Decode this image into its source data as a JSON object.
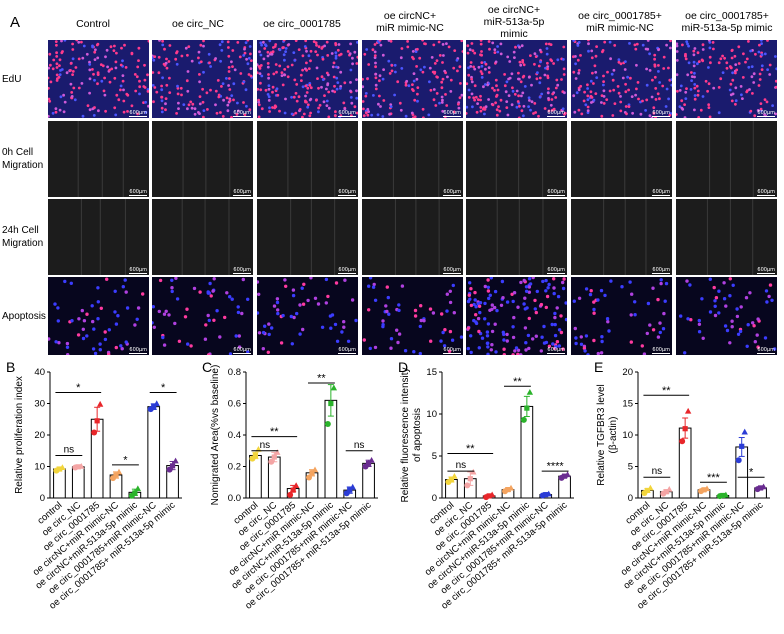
{
  "panel_a": {
    "letter": "A",
    "columns": [
      [
        "Control"
      ],
      [
        "oe circ_NC"
      ],
      [
        "oe circ_0001785"
      ],
      [
        "oe circNC+",
        "miR mimic-NC"
      ],
      [
        "oe circNC+",
        "miR-513a-5p",
        "mimic"
      ],
      [
        "oe circ_0001785+",
        "miR mimic-NC"
      ],
      [
        "oe circ_0001785+",
        "miR-513a-5p mimic"
      ]
    ],
    "rows": [
      {
        "label": [
          "EdU"
        ],
        "kind": "edu"
      },
      {
        "label": [
          "0h Cell",
          "Migration"
        ],
        "kind": "mig0"
      },
      {
        "label": [
          "24h Cell",
          "Migration"
        ],
        "kind": "mig24"
      },
      {
        "label": [
          "Apoptosis"
        ],
        "kind": "apo"
      }
    ],
    "scale_bar": "600μm"
  },
  "chart_data": [
    {
      "type": "bar",
      "letter": "B",
      "ylabel": "Relative proliferation index",
      "ylim": [
        0,
        40
      ],
      "yticks": [
        0,
        10,
        20,
        30,
        40
      ],
      "categories": [
        "control",
        "oe circ_NC",
        "oe circ_0001785",
        "oe circNC+miR mimic-NC",
        "oe circNC+miR-513a-5p mimic",
        "oe circ_0001785+miR mimic-NC",
        "oe circ_0001785+ miR-513a-5p mimic"
      ],
      "values": [
        9.2,
        9.9,
        25.0,
        7.3,
        1.8,
        29.0,
        10.3
      ],
      "errors": [
        0.6,
        0.3,
        3.8,
        1.0,
        1.0,
        0.9,
        1.3
      ],
      "points": [
        [
          8.7,
          9.2,
          9.7
        ],
        [
          9.7,
          9.9,
          10.1
        ],
        [
          20.8,
          24.5,
          29.8
        ],
        [
          6.3,
          7.3,
          8.3
        ],
        [
          0.7,
          1.6,
          3.0
        ],
        [
          28.2,
          29.0,
          30.0
        ],
        [
          9.0,
          10.2,
          11.8
        ]
      ],
      "colors": [
        "#f2d53c",
        "#f4a5a5",
        "#e8262a",
        "#f4a460",
        "#2bb32b",
        "#2b3cd6",
        "#6a2c91"
      ],
      "brackets": [
        {
          "from": 0,
          "to": 2,
          "y": 33.5,
          "label": "*"
        },
        {
          "from": 0,
          "to": 1,
          "y": 13.5,
          "label": "ns"
        },
        {
          "from": 3,
          "to": 4,
          "y": 10.5,
          "label": "*"
        },
        {
          "from": 5,
          "to": 6,
          "y": 33.5,
          "label": "*"
        }
      ]
    },
    {
      "type": "bar",
      "letter": "C",
      "ylabel": "Nomigrated Area(%vs baseline)",
      "ylim": [
        0,
        0.8
      ],
      "yticks": [
        0.0,
        0.2,
        0.4,
        0.6,
        0.8
      ],
      "categories": [
        "control",
        "oe circ_NC",
        "oe circ_0001785",
        "oe circNC+miR mimic-NC",
        "oe circNC+miR-513a-5p mimic",
        "oe circ_0001785+miR mimic-NC",
        "oe circ_0001785+ miR-513a-5p mimic"
      ],
      "values": [
        0.27,
        0.26,
        0.06,
        0.16,
        0.62,
        0.05,
        0.22
      ],
      "errors": [
        0.02,
        0.03,
        0.02,
        0.02,
        0.1,
        0.02,
        0.02
      ],
      "points": [
        [
          0.25,
          0.27,
          0.31
        ],
        [
          0.23,
          0.26,
          0.29
        ],
        [
          0.02,
          0.05,
          0.08
        ],
        [
          0.13,
          0.16,
          0.18
        ],
        [
          0.47,
          0.6,
          0.7
        ],
        [
          0.03,
          0.05,
          0.07
        ],
        [
          0.2,
          0.22,
          0.24
        ]
      ],
      "colors": [
        "#f2d53c",
        "#f4a5a5",
        "#e8262a",
        "#f4a460",
        "#2bb32b",
        "#2b3cd6",
        "#6a2c91"
      ],
      "brackets": [
        {
          "from": 0,
          "to": 2,
          "y": 0.39,
          "label": "**"
        },
        {
          "from": 0,
          "to": 1,
          "y": 0.3,
          "label": "ns"
        },
        {
          "from": 3,
          "to": 4,
          "y": 0.73,
          "label": "**"
        },
        {
          "from": 5,
          "to": 6,
          "y": 0.3,
          "label": "ns"
        }
      ]
    },
    {
      "type": "bar",
      "letter": "D",
      "ylabel": "Relative fluorescence intensity of apoptosis",
      "ylabel_lines": [
        "Relative fluorescence intensity",
        "of apoptosis"
      ],
      "ylim": [
        0,
        15
      ],
      "yticks": [
        0,
        5,
        10,
        15
      ],
      "categories": [
        "control",
        "oe circ_NC",
        "oe circ_0001785",
        "oe circNC+miR mimic-NC",
        "oe circNC+miR-513a-5p mimic",
        "oe circ_0001785+miR mimic-NC",
        "oe circ_0001785+ miR-513a-5p mimic"
      ],
      "values": [
        2.2,
        2.3,
        0.25,
        1.0,
        10.9,
        0.4,
        2.6
      ],
      "errors": [
        0.3,
        0.8,
        0.1,
        0.2,
        1.2,
        0.1,
        0.15
      ],
      "points": [
        [
          1.9,
          2.2,
          2.6
        ],
        [
          1.5,
          2.3,
          3.1
        ],
        [
          0.1,
          0.25,
          0.4
        ],
        [
          0.8,
          1.0,
          1.2
        ],
        [
          9.3,
          10.7,
          12.6
        ],
        [
          0.3,
          0.4,
          0.5
        ],
        [
          2.4,
          2.6,
          2.8
        ]
      ],
      "colors": [
        "#f2d53c",
        "#f4a5a5",
        "#e8262a",
        "#f4a460",
        "#2bb32b",
        "#2b3cd6",
        "#6a2c91"
      ],
      "brackets": [
        {
          "from": 0,
          "to": 2,
          "y": 5.3,
          "label": "**"
        },
        {
          "from": 0,
          "to": 1,
          "y": 3.2,
          "label": "ns"
        },
        {
          "from": 3,
          "to": 4,
          "y": 13.3,
          "label": "**"
        },
        {
          "from": 5,
          "to": 6,
          "y": 3.2,
          "label": "****"
        }
      ]
    },
    {
      "type": "bar",
      "letter": "E",
      "ylabel": "Relative TGFBR3 level (β-actin)",
      "ylabel_lines": [
        "Relative TGFBR3 level",
        "(β-actin)"
      ],
      "ylim": [
        0,
        20
      ],
      "yticks": [
        0,
        5,
        10,
        15,
        20
      ],
      "categories": [
        "control",
        "oe circ_NC",
        "oe circ_0001785",
        "oe circNC+miR mimic-NC",
        "oe circNC+miR-513a-5p mimic",
        "oe circ_0001785+miR mimic-NC",
        "oe circ_0001785+ miR-513a-5p mimic"
      ],
      "values": [
        1.2,
        1.0,
        11.1,
        1.3,
        0.4,
        8.1,
        1.6
      ],
      "errors": [
        0.3,
        0.3,
        1.6,
        0.2,
        0.1,
        1.5,
        0.2
      ],
      "points": [
        [
          0.8,
          1.2,
          1.6
        ],
        [
          0.7,
          1.0,
          1.4
        ],
        [
          9.0,
          11.0,
          13.8
        ],
        [
          1.1,
          1.3,
          1.5
        ],
        [
          0.3,
          0.4,
          0.5
        ],
        [
          6.0,
          8.2,
          10.5
        ],
        [
          1.4,
          1.6,
          1.8
        ]
      ],
      "colors": [
        "#f2d53c",
        "#f4a5a5",
        "#e8262a",
        "#f4a460",
        "#2bb32b",
        "#2b3cd6",
        "#6a2c91"
      ],
      "brackets": [
        {
          "from": 0,
          "to": 2,
          "y": 16.3,
          "label": "**"
        },
        {
          "from": 0,
          "to": 1,
          "y": 3.3,
          "label": "ns"
        },
        {
          "from": 3,
          "to": 4,
          "y": 2.5,
          "label": "***"
        },
        {
          "from": 5,
          "to": 6,
          "y": 3.3,
          "label": "*"
        }
      ]
    }
  ]
}
